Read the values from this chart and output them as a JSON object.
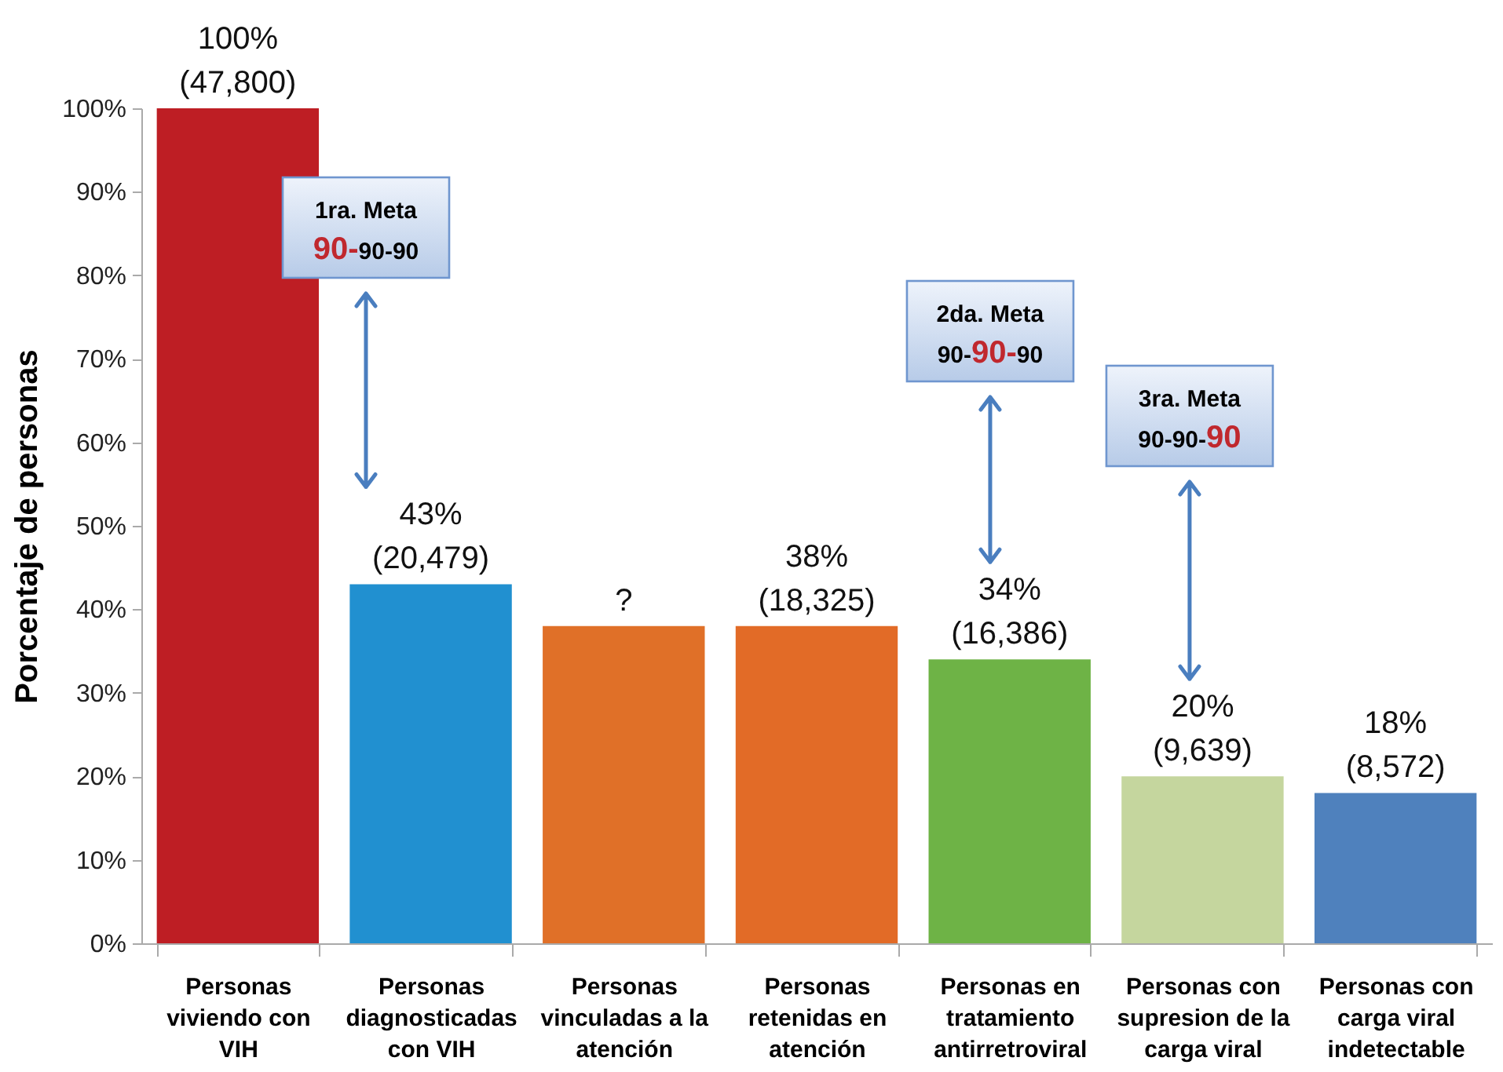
{
  "chart_data": {
    "type": "bar",
    "ylabel": "Porcentaje de personas",
    "categories": [
      "Personas viviendo con VIH",
      "Personas diagnosticadas con VIH",
      "Personas vinculadas a la atención",
      "Personas retenidas en atención",
      "Personas en tratamiento antirretroviral",
      "Personas con supresion de la carga viral",
      "Personas con carga viral indetectable"
    ],
    "values": [
      100,
      43,
      38,
      38,
      34,
      20,
      18
    ],
    "colors": [
      "#be1e24",
      "#2190d0",
      "#e07028",
      "#e26b27",
      "#6eb346",
      "#c5d69e",
      "#4f81bd"
    ],
    "value_labels": [
      "100%\n(47,800)",
      "43%\n(20,479)",
      "?",
      "38%\n(18,325)",
      "34%\n(16,386)",
      "20%\n(9,639)",
      "18%\n(8,572)"
    ],
    "ylim": [
      0,
      100
    ],
    "yticks": [
      {
        "value": 0,
        "label": "0%"
      },
      {
        "value": 10,
        "label": "10%"
      },
      {
        "value": 20,
        "label": "20%"
      },
      {
        "value": 30,
        "label": "30%"
      },
      {
        "value": 40,
        "label": "40%"
      },
      {
        "value": 50,
        "label": "50%"
      },
      {
        "value": 60,
        "label": "60%"
      },
      {
        "value": 70,
        "label": "70%"
      },
      {
        "value": 80,
        "label": "80%"
      },
      {
        "value": 90,
        "label": "90%"
      },
      {
        "value": 100,
        "label": "100%"
      }
    ],
    "grid": false,
    "annotations": [
      "1ra. Meta\n90-90-90",
      "2da. Meta\n90-90-90",
      "3ra. Meta\n90-90-90"
    ]
  }
}
